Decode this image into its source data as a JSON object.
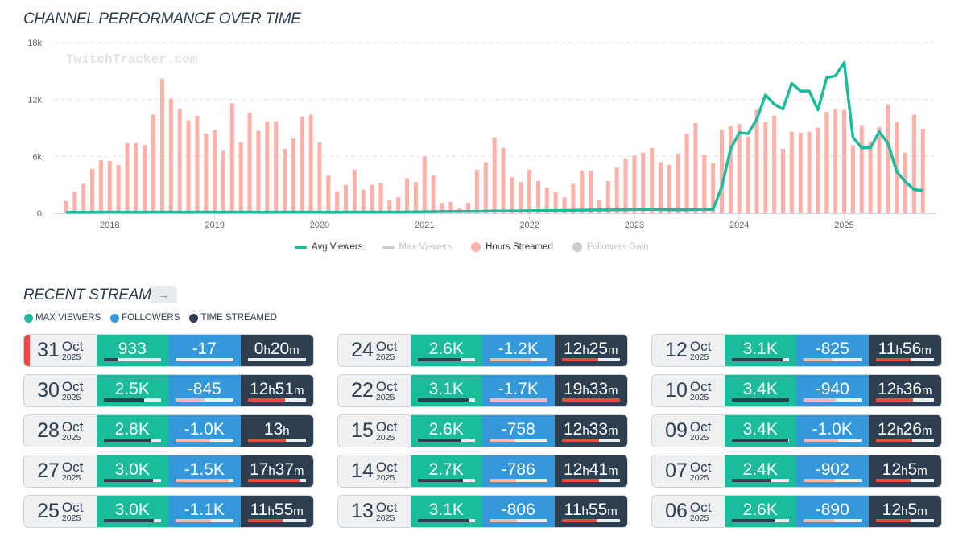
{
  "chart_title": "CHANNEL PERFORMANCE OVER TIME",
  "watermark": "TwitchTracker.com",
  "chart_data": {
    "type": "bar",
    "title": "CHANNEL PERFORMANCE OVER TIME",
    "xlabel": "",
    "ylabel": "",
    "ylim": [
      0,
      18000
    ],
    "yticks": [
      "0",
      "6k",
      "12k",
      "18k"
    ],
    "ytick_values": [
      0,
      6000,
      12000,
      18000
    ],
    "xticks": [
      "2018",
      "2019",
      "2020",
      "2021",
      "2022",
      "2023",
      "2024",
      "2025"
    ],
    "grid": true,
    "legend_position": "bottom",
    "x_start": "2017-08",
    "x_end": "2025-10",
    "x_step": "month",
    "series": [
      {
        "name": "Hours Streamed",
        "type": "bar",
        "color": "#fdb1a8",
        "visible": true,
        "values": [
          1300,
          2300,
          3100,
          4700,
          5600,
          5500,
          5100,
          7400,
          7400,
          7200,
          10400,
          14200,
          12100,
          11000,
          9800,
          10300,
          8400,
          8800,
          6600,
          11600,
          7500,
          10600,
          8700,
          9700,
          9700,
          6800,
          7900,
          10200,
          10400,
          7500,
          4000,
          2300,
          3000,
          4600,
          2500,
          3000,
          3200,
          1400,
          1700,
          3700,
          3300,
          6000,
          4000,
          1100,
          1200,
          500,
          1100,
          4600,
          5400,
          8000,
          6900,
          3800,
          3300,
          4600,
          3400,
          2700,
          2200,
          1700,
          3100,
          4500,
          4500,
          1400,
          3400,
          4800,
          5800,
          6100,
          6400,
          6900,
          5400,
          5100,
          6300,
          8400,
          9500,
          6200,
          5300,
          8800,
          9200,
          9400,
          8100,
          10900,
          9600,
          10300,
          6800,
          8600,
          8500,
          8600,
          9000,
          10700,
          11000,
          10900,
          7200,
          9300,
          7600,
          9100,
          11500,
          9600,
          6400,
          10400,
          8900
        ]
      },
      {
        "name": "Avg Viewers",
        "type": "line",
        "color": "#1abc9c",
        "visible": true,
        "values": [
          100,
          100,
          100,
          120,
          120,
          130,
          130,
          120,
          120,
          120,
          130,
          130,
          130,
          120,
          120,
          130,
          130,
          120,
          120,
          130,
          130,
          130,
          120,
          120,
          120,
          130,
          130,
          130,
          130,
          120,
          120,
          120,
          130,
          130,
          130,
          130,
          130,
          130,
          130,
          140,
          150,
          160,
          170,
          180,
          190,
          190,
          200,
          200,
          210,
          230,
          240,
          250,
          250,
          260,
          270,
          280,
          290,
          300,
          320,
          330,
          340,
          350,
          350,
          360,
          370,
          390,
          400,
          400,
          380,
          370,
          360,
          370,
          380,
          390,
          400,
          2800,
          6800,
          8500,
          8400,
          9900,
          12500,
          11500,
          11000,
          13700,
          12900,
          12900,
          10900,
          14300,
          14500,
          15900,
          8000,
          6900,
          6900,
          8600,
          7400,
          4400,
          3300,
          2500,
          2400
        ]
      },
      {
        "name": "Max Viewers",
        "type": "line",
        "color": "#cccccc",
        "visible": false,
        "values": []
      },
      {
        "name": "Followers Gain",
        "type": "bar",
        "color": "#cccccc",
        "visible": false,
        "values": []
      }
    ]
  },
  "legend": [
    {
      "label": "Avg Viewers",
      "kind": "line",
      "color": "#1abc9c",
      "state": "on"
    },
    {
      "label": "Max Viewers",
      "kind": "line",
      "color": "#cccccc",
      "state": "off"
    },
    {
      "label": "Hours Streamed",
      "kind": "dot",
      "color": "#fdb1a8",
      "state": "on"
    },
    {
      "label": "Followers Gain",
      "kind": "dot",
      "color": "#cccccc",
      "state": "off"
    }
  ],
  "recent": {
    "title": "RECENT STREAMS",
    "arrow_icon": "→",
    "legend": [
      {
        "label": "MAX VIEWERS",
        "color": "#1abc9c"
      },
      {
        "label": "FOLLOWERS",
        "color": "#3498db"
      },
      {
        "label": "TIME STREAMED",
        "color": "#2c3e50"
      }
    ],
    "streams": [
      {
        "day": "31",
        "month": "Oct",
        "year": "2025",
        "viewers": "933",
        "viewers_pct": 26,
        "followers": "-17",
        "followers_pct": 0,
        "hours": "0",
        "minutes": "20",
        "time_pct": 0,
        "live": true
      },
      {
        "day": "24",
        "month": "Oct",
        "year": "2025",
        "viewers": "2.6K",
        "viewers_pct": 76,
        "followers": "-1.2K",
        "followers_pct": 71,
        "hours": "12",
        "minutes": "25",
        "time_pct": 63
      },
      {
        "day": "12",
        "month": "Oct",
        "year": "2025",
        "viewers": "3.1K",
        "viewers_pct": 89,
        "followers": "-825",
        "followers_pct": 49,
        "hours": "11",
        "minutes": "56",
        "time_pct": 60
      },
      {
        "day": "30",
        "month": "Oct",
        "year": "2025",
        "viewers": "2.5K",
        "viewers_pct": 71,
        "followers": "-845",
        "followers_pct": 50,
        "hours": "12",
        "minutes": "51",
        "time_pct": 64
      },
      {
        "day": "22",
        "month": "Oct",
        "year": "2025",
        "viewers": "3.1K",
        "viewers_pct": 89,
        "followers": "-1.7K",
        "followers_pct": 100,
        "hours": "19",
        "minutes": "33",
        "time_pct": 100
      },
      {
        "day": "10",
        "month": "Oct",
        "year": "2025",
        "viewers": "3.4K",
        "viewers_pct": 100,
        "followers": "-940",
        "followers_pct": 56,
        "hours": "12",
        "minutes": "36",
        "time_pct": 64
      },
      {
        "day": "28",
        "month": "Oct",
        "year": "2025",
        "viewers": "2.8K",
        "viewers_pct": 82,
        "followers": "-1.0K",
        "followers_pct": 60,
        "hours": "13",
        "minutes": "",
        "time_pct": 65
      },
      {
        "day": "15",
        "month": "Oct",
        "year": "2025",
        "viewers": "2.6K",
        "viewers_pct": 75,
        "followers": "-758",
        "followers_pct": 44,
        "hours": "12",
        "minutes": "33",
        "time_pct": 64
      },
      {
        "day": "09",
        "month": "Oct",
        "year": "2025",
        "viewers": "3.4K",
        "viewers_pct": 99,
        "followers": "-1.0K",
        "followers_pct": 60,
        "hours": "12",
        "minutes": "26",
        "time_pct": 63
      },
      {
        "day": "27",
        "month": "Oct",
        "year": "2025",
        "viewers": "3.0K",
        "viewers_pct": 86,
        "followers": "-1.5K",
        "followers_pct": 92,
        "hours": "17",
        "minutes": "37",
        "time_pct": 89
      },
      {
        "day": "14",
        "month": "Oct",
        "year": "2025",
        "viewers": "2.7K",
        "viewers_pct": 79,
        "followers": "-786",
        "followers_pct": 46,
        "hours": "12",
        "minutes": "41",
        "time_pct": 64
      },
      {
        "day": "07",
        "month": "Oct",
        "year": "2025",
        "viewers": "2.4K",
        "viewers_pct": 68,
        "followers": "-902",
        "followers_pct": 53,
        "hours": "12",
        "minutes": "5",
        "time_pct": 60
      },
      {
        "day": "25",
        "month": "Oct",
        "year": "2025",
        "viewers": "3.0K",
        "viewers_pct": 87,
        "followers": "-1.1K",
        "followers_pct": 62,
        "hours": "11",
        "minutes": "55",
        "time_pct": 60
      },
      {
        "day": "13",
        "month": "Oct",
        "year": "2025",
        "viewers": "3.1K",
        "viewers_pct": 90,
        "followers": "-806",
        "followers_pct": 47,
        "hours": "11",
        "minutes": "55",
        "time_pct": 60
      },
      {
        "day": "06",
        "month": "Oct",
        "year": "2025",
        "viewers": "2.6K",
        "viewers_pct": 75,
        "followers": "-890",
        "followers_pct": 53,
        "hours": "12",
        "minutes": "5",
        "time_pct": 60
      }
    ]
  },
  "units": {
    "hour": "h",
    "minute": "m"
  }
}
